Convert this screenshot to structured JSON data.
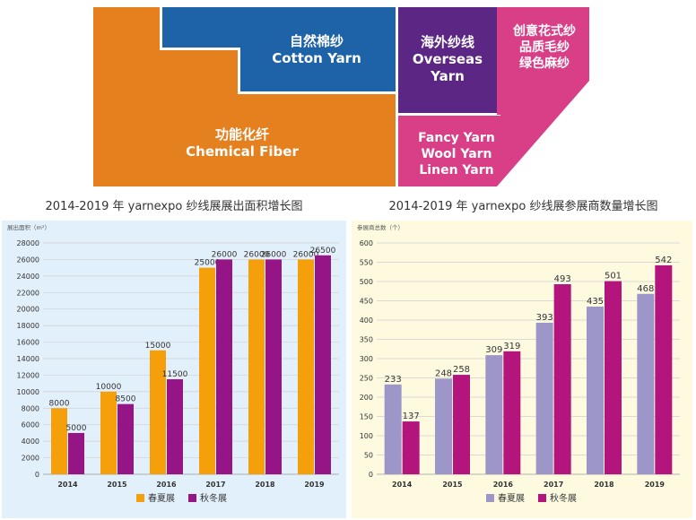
{
  "categories_graphic": {
    "cotton": {
      "zh": "自然棉纱",
      "en": "Cotton Yarn",
      "color": "#1e63a8"
    },
    "chemical": {
      "zh": "功能化纤",
      "en": "Chemical Fiber",
      "color": "#e5801e"
    },
    "overseas": {
      "zh": "海外纱线",
      "en1": "Overseas",
      "en2": "Yarn",
      "color": "#5c2684"
    },
    "fancy": {
      "zh1": "创意花式纱",
      "zh2": "品质毛纱",
      "zh3": "绿色麻纱",
      "color": "#d93f86"
    },
    "fancy_en": {
      "l1": "Fancy Yarn",
      "l2": "Wool Yarn",
      "l3": "Linen Yarn",
      "color": "#d93f86"
    }
  },
  "chart_data": [
    {
      "type": "bar",
      "title": "2014-2019 年 yarnexpo 纱线展展出面积增长图",
      "ylabel": "展出面积（m²）",
      "categories": [
        "2014",
        "2015",
        "2016",
        "2017",
        "2018",
        "2019"
      ],
      "ylim": [
        0,
        28000
      ],
      "yticks": [
        0,
        2000,
        4000,
        6000,
        8000,
        10000,
        12000,
        14000,
        16000,
        18000,
        20000,
        22000,
        24000,
        26000,
        28000
      ],
      "series": [
        {
          "name": "春夏展",
          "values": [
            8000,
            10000,
            15000,
            25000,
            26000,
            26000
          ],
          "color": "#f5a00a"
        },
        {
          "name": "秋冬展",
          "values": [
            5000,
            8500,
            11500,
            26000,
            26000,
            26500
          ],
          "color": "#951587"
        }
      ],
      "background": "#e2f0fb",
      "grid": true,
      "legend": "bottom"
    },
    {
      "type": "bar",
      "title": "2014-2019 年 yarnexpo 纱线展参展商数量增长图",
      "ylabel": "参展商总数（个）",
      "categories": [
        "2014",
        "2015",
        "2016",
        "2017",
        "2018",
        "2019"
      ],
      "ylim": [
        0,
        600
      ],
      "yticks": [
        0,
        50,
        100,
        150,
        200,
        250,
        300,
        350,
        400,
        450,
        500,
        550,
        600
      ],
      "series": [
        {
          "name": "春夏展",
          "values": [
            233,
            248,
            309,
            393,
            435,
            468
          ],
          "color": "#9c97c8"
        },
        {
          "name": "秋冬展",
          "values": [
            137,
            258,
            319,
            493,
            501,
            542
          ],
          "color": "#b4157c"
        }
      ],
      "background": "#fdfae0",
      "grid": true,
      "legend": "bottom"
    }
  ]
}
